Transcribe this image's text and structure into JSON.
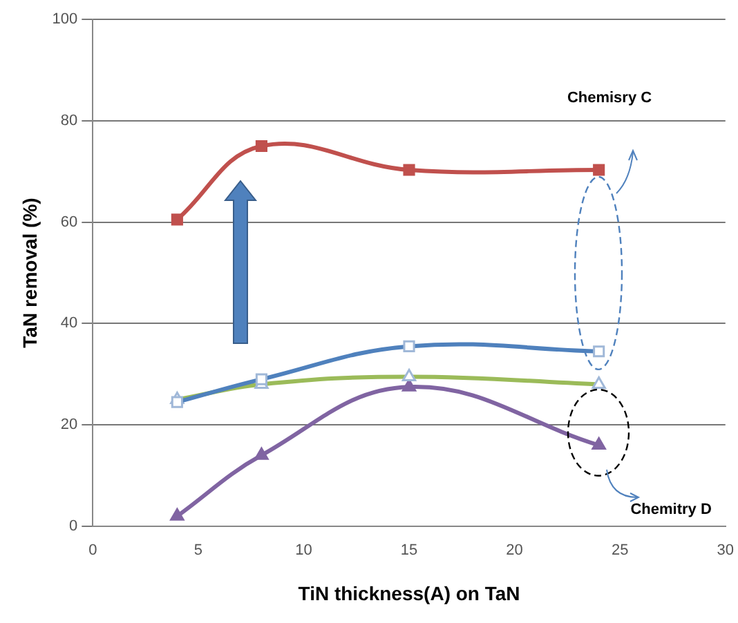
{
  "chart_data": {
    "type": "line",
    "xlabel": "TiN thickness(A) on TaN",
    "ylabel": "TaN removal (%)",
    "xlim": [
      0,
      30
    ],
    "xticks": [
      0,
      5,
      10,
      15,
      20,
      25,
      30
    ],
    "ylim": [
      0,
      100
    ],
    "yticks": [
      0,
      20,
      40,
      60,
      80,
      100
    ],
    "grid": "y",
    "legend": false,
    "series": [
      {
        "color": "#c0504d",
        "marker": "square",
        "x": [
          4,
          8,
          15,
          24
        ],
        "values": [
          60.5,
          75,
          70.3,
          70.3
        ]
      },
      {
        "color": "#4f81bd",
        "marker": "square",
        "x": [
          4,
          8,
          15,
          24
        ],
        "values": [
          24.5,
          29,
          35.5,
          34.5
        ]
      },
      {
        "color": "#9bbb59",
        "marker": "triangle",
        "x": [
          4,
          8,
          15,
          24
        ],
        "values": [
          25,
          28,
          29.5,
          28
        ]
      },
      {
        "color": "#8064a2",
        "marker": "triangle",
        "x": [
          4,
          8,
          15,
          24
        ],
        "values": [
          2,
          14,
          27.5,
          16
        ]
      }
    ],
    "annotations": [
      "Chemisry C",
      "Chemitry D"
    ]
  }
}
